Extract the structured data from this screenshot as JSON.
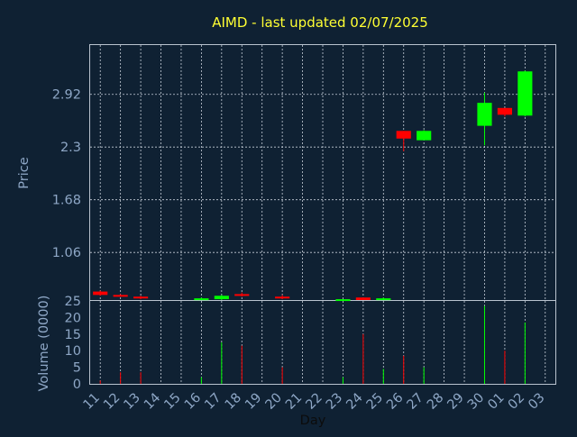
{
  "chart_data": {
    "type": "candlestick",
    "title": "AIMD - last updated 02/07/2025",
    "xlabel": "Day",
    "price_ylabel": "Price",
    "volume_ylabel": "Volume (0000)",
    "x_ticks": [
      "11",
      "12",
      "13",
      "14",
      "15",
      "16",
      "17",
      "18",
      "19",
      "20",
      "21",
      "22",
      "23",
      "24",
      "25",
      "26",
      "27",
      "28",
      "29",
      "30",
      "01",
      "02",
      "03"
    ],
    "price_ticks": [
      "1.06",
      "1.68",
      "2.3",
      "2.92"
    ],
    "volume_ticks": [
      "0",
      "5",
      "10",
      "15",
      "20",
      "25"
    ],
    "price_ylim": [
      0.5,
      3.5
    ],
    "volume_ylim": [
      0,
      25
    ],
    "up_color": "#00ff00",
    "down_color": "#ff0000",
    "candles": [
      {
        "day": "11",
        "open": 0.6,
        "close": 0.56,
        "high": 0.61,
        "low": 0.55,
        "volume": 1.0
      },
      {
        "day": "12",
        "open": 0.56,
        "close": 0.55,
        "high": 0.57,
        "low": 0.54,
        "volume": 3.5
      },
      {
        "day": "13",
        "open": 0.54,
        "close": 0.52,
        "high": 0.55,
        "low": 0.51,
        "volume": 3.5
      },
      {
        "day": "16",
        "open": 0.51,
        "close": 0.52,
        "high": 0.53,
        "low": 0.51,
        "volume": 2.0
      },
      {
        "day": "17",
        "open": 0.51,
        "close": 0.55,
        "high": 0.56,
        "low": 0.5,
        "volume": 12.5
      },
      {
        "day": "18",
        "open": 0.57,
        "close": 0.55,
        "high": 0.59,
        "low": 0.54,
        "volume": 11.5
      },
      {
        "day": "20",
        "open": 0.54,
        "close": 0.52,
        "high": 0.56,
        "low": 0.51,
        "volume": 5.0
      },
      {
        "day": "23",
        "open": 0.5,
        "close": 0.51,
        "high": 0.51,
        "low": 0.49,
        "volume": 2.0
      },
      {
        "day": "24",
        "open": 0.53,
        "close": 0.5,
        "high": 0.53,
        "low": 0.5,
        "volume": 15.0
      },
      {
        "day": "25",
        "open": 0.51,
        "close": 0.52,
        "high": 0.53,
        "low": 0.5,
        "volume": 4.5
      },
      {
        "day": "26",
        "open": 2.49,
        "close": 2.4,
        "high": 2.49,
        "low": 2.25,
        "volume": 8.5
      },
      {
        "day": "27",
        "open": 2.38,
        "close": 2.49,
        "high": 2.5,
        "low": 2.38,
        "volume": 5.0
      },
      {
        "day": "30",
        "open": 2.55,
        "close": 2.82,
        "high": 2.94,
        "low": 2.32,
        "volume": 23.5
      },
      {
        "day": "01",
        "open": 2.76,
        "close": 2.68,
        "high": 2.76,
        "low": 2.66,
        "volume": 10.0
      },
      {
        "day": "02",
        "open": 2.67,
        "close": 3.19,
        "high": 3.2,
        "low": 2.66,
        "volume": 18.5
      }
    ]
  }
}
